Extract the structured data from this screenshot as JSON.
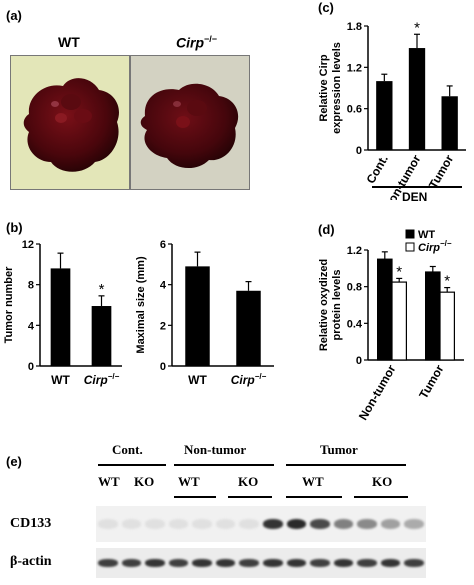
{
  "panels": {
    "a": {
      "label": "(a)",
      "wt_label": "WT",
      "ko_label": "Cirp",
      "ko_sup": "−/−"
    },
    "b": {
      "label": "(b)"
    },
    "c": {
      "label": "(c)",
      "group_label": "DEN"
    },
    "d": {
      "label": "(d)"
    },
    "e": {
      "label": "(e)"
    }
  },
  "chart_data": [
    {
      "id": "b-left",
      "type": "bar",
      "ylabel": "Tumor number",
      "categories": [
        "WT",
        "Cirp−/−"
      ],
      "values": [
        9.6,
        5.9
      ],
      "errors": [
        1.5,
        1.0
      ],
      "significance": [
        "",
        "*"
      ],
      "ylim": [
        0,
        12
      ],
      "yticks": [
        0,
        4,
        8,
        12
      ],
      "color": "#000000"
    },
    {
      "id": "b-right",
      "type": "bar",
      "ylabel": "Maximal size (mm)",
      "categories": [
        "WT",
        "Cirp−/−"
      ],
      "values": [
        4.9,
        3.7
      ],
      "errors": [
        0.7,
        0.45
      ],
      "ylim": [
        0,
        6
      ],
      "yticks": [
        0,
        2,
        4,
        6
      ],
      "color": "#000000"
    },
    {
      "id": "c",
      "type": "bar",
      "ylabel": "Relative Cirp expression levels",
      "categories": [
        "Cont.",
        "Non-tumor",
        "Tumor"
      ],
      "values": [
        1.0,
        1.48,
        0.78
      ],
      "errors": [
        0.1,
        0.2,
        0.15
      ],
      "significance": [
        "",
        "*",
        ""
      ],
      "ylim": [
        0,
        1.8
      ],
      "yticks": [
        0,
        0.6,
        1.2,
        1.8
      ],
      "color": "#000000"
    },
    {
      "id": "d",
      "type": "bar",
      "ylabel": "Relative oxydized protein levels",
      "categories": [
        "Non-tumor",
        "Tumor"
      ],
      "series": [
        {
          "name": "WT",
          "values": [
            1.1,
            0.96
          ],
          "errors": [
            0.08,
            0.06
          ],
          "color": "#000000"
        },
        {
          "name": "Cirp−/−",
          "values": [
            0.85,
            0.74
          ],
          "errors": [
            0.04,
            0.05
          ],
          "color": "#ffffff"
        }
      ],
      "significance": [
        "*",
        "*"
      ],
      "ylim": [
        0,
        1.2
      ],
      "yticks": [
        0,
        0.4,
        0.8,
        1.2
      ],
      "legend": "top-right"
    }
  ],
  "blot": {
    "group_headers": [
      "Cont.",
      "Non-tumor",
      "Tumor"
    ],
    "sub_headers": [
      "WT",
      "KO",
      "WT",
      "KO",
      "WT",
      "KO"
    ],
    "rows": [
      "CD133",
      "β-actin"
    ],
    "cd133_intensity": [
      0.05,
      0.05,
      0.05,
      0.05,
      0.05,
      0.05,
      0.05,
      0.85,
      0.9,
      0.75,
      0.5,
      0.45,
      0.35,
      0.3
    ],
    "actin_intensity": [
      0.8,
      0.8,
      0.85,
      0.8,
      0.85,
      0.85,
      0.8,
      0.85,
      0.85,
      0.8,
      0.85,
      0.8,
      0.85,
      0.8
    ]
  }
}
